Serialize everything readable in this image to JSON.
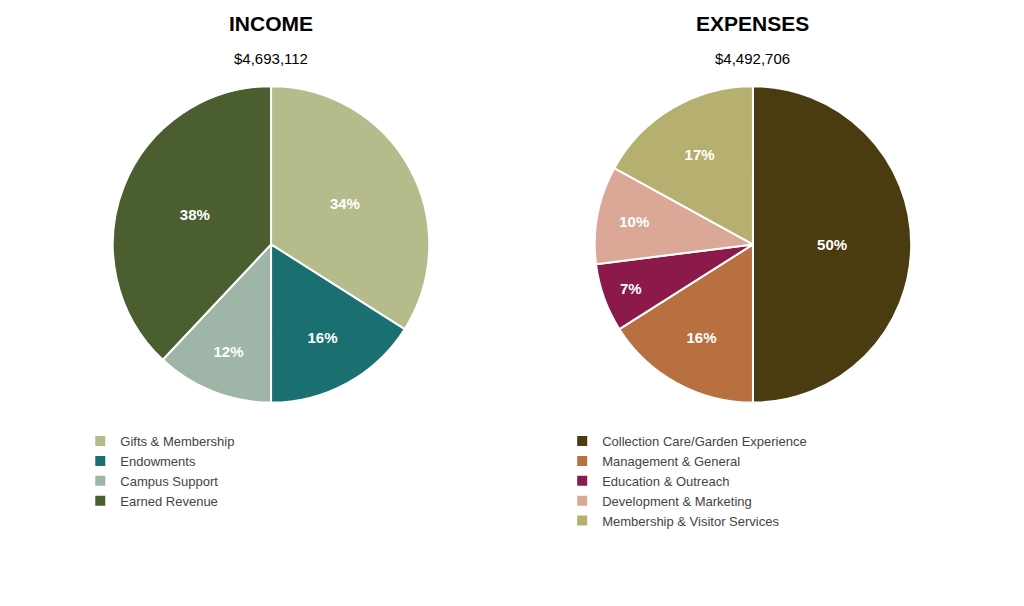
{
  "chart_data": [
    {
      "type": "pie",
      "title": "INCOME",
      "subtitle": "$4,693,112",
      "categories": [
        "Gifts & Membership",
        "Endowments",
        "Campus Support",
        "Earned Revenue"
      ],
      "values": [
        34,
        16,
        12,
        38
      ],
      "value_labels": [
        "34%",
        "16%",
        "12%",
        "38%"
      ],
      "colors": [
        "#b5bb8a",
        "#1a7070",
        "#9eb5a8",
        "#4a5e2f"
      ],
      "data_labels": true,
      "legend": "bottom"
    },
    {
      "type": "pie",
      "title": "EXPENSES",
      "subtitle": "$4,492,706",
      "categories": [
        "Collection Care/Garden Experience",
        "Management & General",
        "Education & Outreach",
        "Development & Marketing",
        "Membership & Visitor Services"
      ],
      "values": [
        50,
        16,
        7,
        10,
        17
      ],
      "value_labels": [
        "50%",
        "16%",
        "7%",
        "10%",
        "17%"
      ],
      "colors": [
        "#4a3c10",
        "#b87040",
        "#8b1a4a",
        "#dba898",
        "#b5b070"
      ],
      "data_labels": true,
      "legend": "bottom"
    }
  ]
}
